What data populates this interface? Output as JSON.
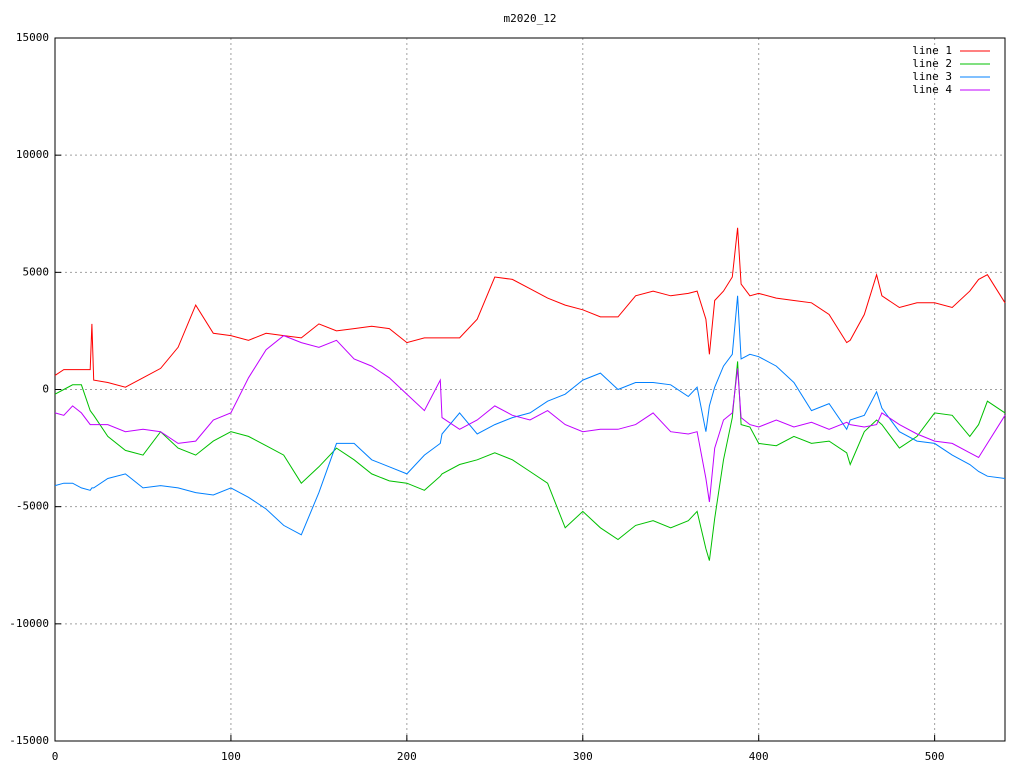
{
  "chart_data": {
    "type": "line",
    "title": "m2020_12",
    "x": [
      0,
      5,
      10,
      15,
      20,
      21,
      22,
      30,
      40,
      50,
      60,
      70,
      80,
      90,
      100,
      110,
      120,
      130,
      140,
      150,
      160,
      170,
      180,
      190,
      200,
      210,
      219,
      220,
      230,
      240,
      250,
      260,
      270,
      280,
      290,
      300,
      310,
      320,
      330,
      340,
      350,
      360,
      365,
      370,
      372,
      375,
      380,
      385,
      388,
      390,
      395,
      400,
      410,
      420,
      430,
      440,
      450,
      452,
      460,
      467,
      470,
      480,
      490,
      500,
      510,
      520,
      525,
      530,
      540
    ],
    "series": [
      {
        "name": "line 1",
        "color": "#ff0000",
        "values": [
          600,
          850,
          850,
          850,
          850,
          2800,
          400,
          300,
          100,
          500,
          900,
          1800,
          3600,
          2400,
          2300,
          2100,
          2400,
          2300,
          2200,
          2800,
          2500,
          2600,
          2700,
          2600,
          2000,
          2200,
          2200,
          2200,
          2200,
          3000,
          4800,
          4700,
          4300,
          3900,
          3600,
          3400,
          3100,
          3100,
          4000,
          4200,
          4000,
          4100,
          4200,
          3000,
          1500,
          3800,
          4200,
          4800,
          6900,
          4500,
          4000,
          4100,
          3900,
          3800,
          3700,
          3200,
          2000,
          2100,
          3200,
          4900,
          4000,
          3500,
          3700,
          3700,
          3500,
          4200,
          4700,
          4900,
          3700
        ]
      },
      {
        "name": "line 2",
        "color": "#00c000",
        "values": [
          -200,
          0,
          200,
          200,
          -900,
          -1000,
          -1100,
          -2000,
          -2600,
          -2800,
          -1800,
          -2500,
          -2800,
          -2200,
          -1800,
          -2000,
          -2400,
          -2800,
          -4000,
          -3300,
          -2500,
          -3000,
          -3600,
          -3900,
          -4000,
          -4300,
          -3700,
          -3600,
          -3200,
          -3000,
          -2700,
          -3000,
          -3500,
          -4000,
          -5900,
          -5200,
          -5900,
          -6400,
          -5800,
          -5600,
          -5900,
          -5600,
          -5200,
          -6800,
          -7300,
          -5500,
          -3000,
          -1200,
          1200,
          -1500,
          -1600,
          -2300,
          -2400,
          -2000,
          -2300,
          -2200,
          -2700,
          -3200,
          -1800,
          -1300,
          -1500,
          -2500,
          -2000,
          -1000,
          -1100,
          -2000,
          -1500,
          -500,
          -1000
        ]
      },
      {
        "name": "line 3",
        "color": "#0080ff",
        "values": [
          -4100,
          -4000,
          -4000,
          -4200,
          -4300,
          -4200,
          -4200,
          -3800,
          -3600,
          -4200,
          -4100,
          -4200,
          -4400,
          -4500,
          -4200,
          -4600,
          -5100,
          -5800,
          -6200,
          -4400,
          -2300,
          -2300,
          -3000,
          -3300,
          -3600,
          -2800,
          -2300,
          -1900,
          -1000,
          -1900,
          -1500,
          -1200,
          -1000,
          -500,
          -200,
          400,
          700,
          0,
          300,
          300,
          200,
          -300,
          100,
          -1800,
          -700,
          100,
          1000,
          1500,
          4000,
          1300,
          1500,
          1400,
          1000,
          300,
          -900,
          -600,
          -1700,
          -1300,
          -1100,
          -100,
          -800,
          -1800,
          -2200,
          -2300,
          -2800,
          -3200,
          -3500,
          -3700,
          -3800
        ]
      },
      {
        "name": "line 4",
        "color": "#c000ff",
        "values": [
          -1000,
          -1100,
          -700,
          -1000,
          -1500,
          -1500,
          -1500,
          -1500,
          -1800,
          -1700,
          -1800,
          -2300,
          -2200,
          -1300,
          -1000,
          500,
          1700,
          2300,
          2000,
          1800,
          2100,
          1300,
          1000,
          500,
          -200,
          -900,
          400,
          -1200,
          -1700,
          -1300,
          -700,
          -1100,
          -1300,
          -900,
          -1500,
          -1800,
          -1700,
          -1700,
          -1500,
          -1000,
          -1800,
          -1900,
          -1800,
          -3800,
          -4800,
          -2500,
          -1300,
          -1000,
          900,
          -1200,
          -1500,
          -1600,
          -1300,
          -1600,
          -1400,
          -1700,
          -1400,
          -1500,
          -1600,
          -1500,
          -1000,
          -1500,
          -1900,
          -2200,
          -2300,
          -2700,
          -2900,
          -2300,
          -1100
        ]
      }
    ],
    "xlim": [
      0,
      540
    ],
    "xticks": [
      0,
      100,
      200,
      300,
      400,
      500
    ],
    "ylim": [
      -15000,
      15000
    ],
    "yticks": [
      -15000,
      -10000,
      -5000,
      0,
      5000,
      10000,
      15000
    ],
    "grid": true,
    "legend": "top-right"
  }
}
